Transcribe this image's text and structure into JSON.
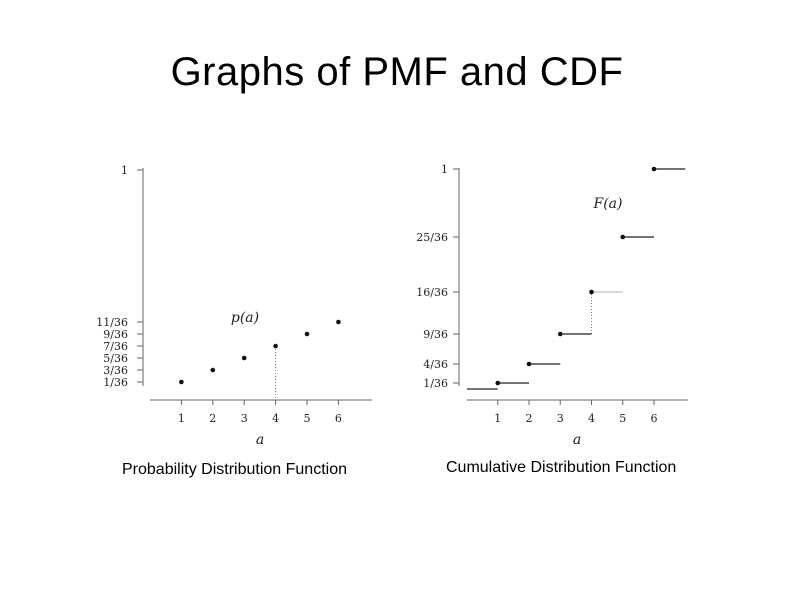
{
  "slide": {
    "title": "Graphs of PMF and CDF",
    "captions": [
      "Probability Distribution Function",
      "Cumulative Distribution Function"
    ]
  },
  "chart_data": [
    {
      "type": "scatter",
      "x": [
        1,
        2,
        3,
        4,
        5,
        6
      ],
      "values": [
        0.0278,
        0.0833,
        0.1389,
        0.1944,
        0.25,
        0.3056
      ],
      "annotation": "p(a)",
      "xlabel": "a",
      "xticks": [
        "1",
        "2",
        "3",
        "4",
        "5",
        "6"
      ],
      "yticks": [
        {
          "label": "1",
          "value": 1
        },
        {
          "label": "11/36",
          "value": 0.3056
        },
        {
          "label": "9/36",
          "value": 0.25
        },
        {
          "label": "7/36",
          "value": 0.1944
        },
        {
          "label": "5/36",
          "value": 0.1389
        },
        {
          "label": "3/36",
          "value": 0.0833
        },
        {
          "label": "1/36",
          "value": 0.0278
        }
      ],
      "xlim": [
        0,
        7
      ],
      "ylim": [
        0,
        1
      ],
      "dotted_guide_at": 4
    },
    {
      "type": "line",
      "step": true,
      "x": [
        1,
        2,
        3,
        4,
        5,
        6
      ],
      "values": [
        0.0278,
        0.1111,
        0.25,
        0.4444,
        0.6944,
        1
      ],
      "annotation": "F(a)",
      "xlabel": "a",
      "xticks": [
        "1",
        "2",
        "3",
        "4",
        "5",
        "6"
      ],
      "yticks": [
        {
          "label": "1",
          "value": 1
        },
        {
          "label": "25/36",
          "value": 0.6944
        },
        {
          "label": "16/36",
          "value": 0.4444
        },
        {
          "label": "9/36",
          "value": 0.25
        },
        {
          "label": "4/36",
          "value": 0.1111
        },
        {
          "label": "1/36",
          "value": 0.0278
        }
      ],
      "xlim": [
        0,
        7
      ],
      "ylim": [
        0,
        1
      ],
      "dotted_guide_at": 4
    }
  ]
}
